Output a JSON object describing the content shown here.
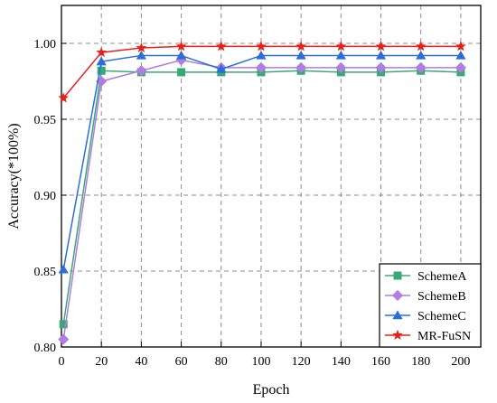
{
  "chart_data": {
    "type": "line",
    "xlabel": "Epoch",
    "ylabel": "Accuracy(*100%)",
    "xlim": [
      0,
      210
    ],
    "ylim": [
      0.8,
      1.025
    ],
    "xticks": [
      0,
      20,
      40,
      60,
      80,
      100,
      120,
      140,
      160,
      180,
      200
    ],
    "xtick_labels": [
      "0",
      "20",
      "40",
      "60",
      "80",
      "100",
      "120",
      "140",
      "160",
      "180",
      "200"
    ],
    "yticks": [
      0.8,
      0.85,
      0.9,
      0.95,
      1.0
    ],
    "ytick_labels": [
      "0.80",
      "0.85",
      "0.90",
      "0.95",
      "1.00"
    ],
    "grid": true,
    "legend_position": "bottom-right",
    "x": [
      1,
      20,
      40,
      60,
      80,
      100,
      120,
      140,
      160,
      180,
      200
    ],
    "series": [
      {
        "name": "SchemeA",
        "color": "#3aa876",
        "marker": "square",
        "values": [
          0.815,
          0.982,
          0.981,
          0.981,
          0.981,
          0.981,
          0.982,
          0.981,
          0.981,
          0.982,
          0.981
        ]
      },
      {
        "name": "SchemeB",
        "color": "#b07de0",
        "marker": "diamond",
        "values": [
          0.805,
          0.975,
          0.982,
          0.989,
          0.984,
          0.984,
          0.984,
          0.984,
          0.984,
          0.984,
          0.984
        ]
      },
      {
        "name": "SchemeC",
        "color": "#2b6fd6",
        "marker": "triangle",
        "values": [
          0.851,
          0.988,
          0.992,
          0.992,
          0.983,
          0.992,
          0.992,
          0.992,
          0.992,
          0.992,
          0.992
        ]
      },
      {
        "name": "MR-FuSN",
        "color": "#e8201a",
        "marker": "star",
        "values": [
          0.964,
          0.994,
          0.997,
          0.998,
          0.998,
          0.998,
          0.998,
          0.998,
          0.998,
          0.998,
          0.998
        ]
      }
    ]
  }
}
